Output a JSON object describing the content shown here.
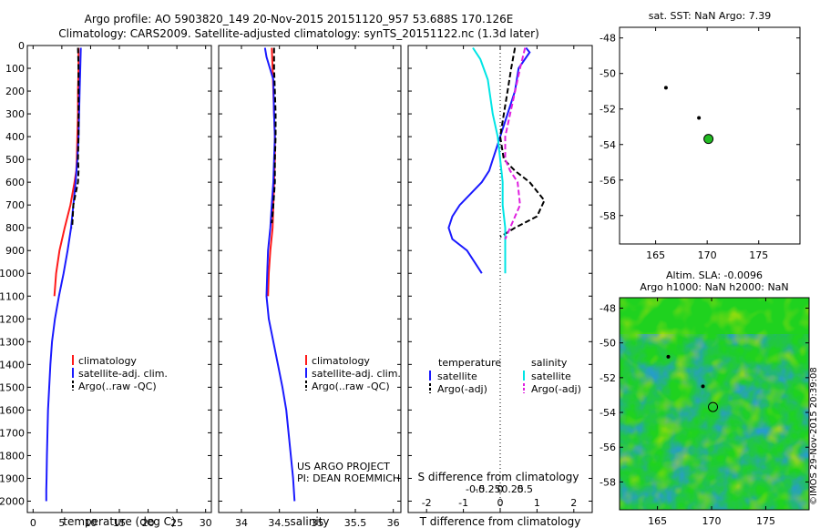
{
  "header": {
    "line1": "Argo profile: AO 5903820_149 20-Nov-2015 20151120_957 53.688S 170.126E",
    "line2": "Climatology: CARS2009. Satellite-adjusted climatology: synTS_20151122.nc (1.3d later)"
  },
  "colors": {
    "climatology": "#ff1a1a",
    "satellite": "#1a1aff",
    "argo": "#000000",
    "satellite_salinity": "#00e5e5",
    "argo_salinity_adj": "#e020e0",
    "argo_marker": "#22bb22"
  },
  "chart_data": [
    {
      "id": "temperature",
      "type": "line",
      "xlabel": "temperature (deg C)",
      "ylabel": "",
      "xlim": [
        -1,
        31
      ],
      "ylim": [
        2050,
        0
      ],
      "xticks": [
        0,
        5,
        10,
        15,
        20,
        25,
        30
      ],
      "yticks": [
        0,
        100,
        200,
        300,
        400,
        500,
        600,
        700,
        800,
        900,
        1000,
        1100,
        1200,
        1300,
        1400,
        1500,
        1600,
        1700,
        1800,
        1900,
        2000
      ],
      "legend": {
        "placement": "lower-center",
        "entries": [
          "climatology",
          "satellite-adj. clim.",
          "Argo(..raw -QC)"
        ]
      },
      "series": [
        {
          "name": "climatology",
          "color": "#ff1a1a",
          "style": "solid",
          "x": [
            7.9,
            7.9,
            7.8,
            7.8,
            7.7,
            7.6,
            7.5,
            7.2,
            6.5,
            5.5,
            4.6,
            4.0,
            3.7
          ],
          "y": [
            10,
            100,
            200,
            300,
            400,
            500,
            550,
            600,
            700,
            800,
            900,
            1000,
            1100
          ]
        },
        {
          "name": "satellite-adj. clim.",
          "color": "#1a1aff",
          "style": "solid",
          "x": [
            8.3,
            8.2,
            8.1,
            8.0,
            7.9,
            7.7,
            7.4,
            7.0,
            6.6,
            6.0,
            5.3,
            4.5,
            3.8,
            3.3,
            3.0,
            2.8,
            2.6,
            2.5,
            2.4,
            2.35,
            2.3,
            2.3
          ],
          "y": [
            10,
            100,
            200,
            300,
            400,
            500,
            600,
            700,
            800,
            900,
            1000,
            1100,
            1200,
            1300,
            1400,
            1500,
            1600,
            1700,
            1800,
            1900,
            1950,
            2000
          ]
        },
        {
          "name": "Argo(..raw -QC)",
          "color": "#000000",
          "style": "dashed",
          "x": [
            7.8,
            7.9,
            7.9,
            7.9,
            7.9,
            7.8,
            7.9,
            7.8,
            7.4,
            7.0,
            6.8
          ],
          "y": [
            10,
            100,
            200,
            300,
            400,
            500,
            550,
            600,
            650,
            700,
            800
          ]
        }
      ]
    },
    {
      "id": "salinity",
      "type": "line",
      "xlabel": "salinity",
      "ylabel": "",
      "xlim": [
        33.7,
        36.1
      ],
      "ylim": [
        2050,
        0
      ],
      "xticks": [
        34,
        34.5,
        35,
        35.5,
        36
      ],
      "legend": {
        "placement": "lower-center",
        "entries": [
          "climatology",
          "satellite-adj. clim.",
          "Argo(..raw -QC)"
        ]
      },
      "annotations": [
        "US ARGO PROJECT",
        "PI: DEAN ROEMMICH"
      ],
      "series": [
        {
          "name": "climatology",
          "color": "#ff1a1a",
          "style": "solid",
          "x": [
            34.4,
            34.41,
            34.42,
            34.43,
            34.44,
            34.44,
            34.43,
            34.42,
            34.41,
            34.38,
            34.36,
            34.35
          ],
          "y": [
            10,
            100,
            200,
            300,
            400,
            500,
            600,
            700,
            800,
            900,
            1000,
            1100
          ]
        },
        {
          "name": "satellite-adj. clim.",
          "color": "#1a1aff",
          "style": "solid",
          "x": [
            34.31,
            34.33,
            34.42,
            34.43,
            34.44,
            34.43,
            34.42,
            34.4,
            34.38,
            34.35,
            34.34,
            34.33,
            34.36,
            34.42,
            34.48,
            34.54,
            34.59,
            34.62,
            34.65,
            34.68,
            34.7
          ],
          "y": [
            10,
            50,
            150,
            300,
            400,
            500,
            600,
            700,
            800,
            900,
            1000,
            1100,
            1200,
            1300,
            1400,
            1500,
            1600,
            1700,
            1800,
            1900,
            2000
          ]
        },
        {
          "name": "Argo(..raw -QC)",
          "color": "#000000",
          "style": "dashed",
          "x": [
            34.43,
            34.43,
            34.44,
            34.45,
            34.45,
            34.44,
            34.44,
            34.42,
            34.4
          ],
          "y": [
            10,
            100,
            200,
            300,
            400,
            500,
            600,
            700,
            780
          ]
        }
      ]
    },
    {
      "id": "difference",
      "type": "line",
      "xlabel": "T difference from climatology",
      "xlabel_top": "S difference from climatology",
      "xlim": [
        -2.5,
        2.5
      ],
      "ylim": [
        2050,
        0
      ],
      "xticks_bottom": [
        -2,
        -1,
        0,
        1,
        2
      ],
      "xticks_top": [
        "-0.5",
        "-0.25",
        "0",
        "0.25",
        "0.5"
      ],
      "legend": {
        "placement": "lower-center",
        "temperature_header": "temperature",
        "salinity_header": "salinity",
        "entries": [
          "satellite",
          "Argo(-adj)",
          "satellite",
          "Argo(-adj)"
        ]
      },
      "series": [
        {
          "name": "temperature satellite",
          "color": "#1a1aff",
          "style": "solid",
          "x": [
            0.7,
            0.8,
            0.5,
            0.4,
            0.2,
            0.0,
            -0.1,
            -0.2,
            -0.3,
            -0.5,
            -0.8,
            -1.1,
            -1.3,
            -1.4,
            -1.3,
            -0.9,
            -0.7,
            -0.5
          ],
          "y": [
            10,
            30,
            100,
            200,
            300,
            400,
            450,
            500,
            550,
            600,
            650,
            700,
            750,
            800,
            850,
            900,
            950,
            1000
          ]
        },
        {
          "name": "temperature Argo(-adj)",
          "color": "#000000",
          "style": "dashed",
          "x": [
            0.4,
            0.3,
            0.2,
            0.1,
            0.0,
            0.1,
            0.4,
            0.8,
            1.2,
            1.0,
            0.4,
            0.0
          ],
          "y": [
            10,
            100,
            200,
            300,
            400,
            500,
            550,
            600,
            680,
            750,
            800,
            840
          ]
        },
        {
          "name": "salinity satellite",
          "color": "#00e5e5",
          "style": "solid",
          "x": [
            -0.55,
            -0.4,
            -0.25,
            -0.15,
            -0.05,
            0.0,
            0.05,
            0.05,
            0.1,
            0.1,
            0.1,
            0.1
          ],
          "y": [
            10,
            60,
            150,
            300,
            400,
            500,
            600,
            700,
            800,
            900,
            950,
            1000
          ]
        },
        {
          "name": "salinity Argo(-adj)",
          "color": "#e020e0",
          "style": "dashed",
          "x": [
            0.5,
            0.4,
            0.3,
            0.2,
            0.1,
            0.1,
            0.2,
            0.35,
            0.4,
            0.2,
            0.1
          ],
          "y": [
            10,
            100,
            200,
            300,
            400,
            500,
            550,
            600,
            700,
            800,
            850
          ]
        }
      ]
    },
    {
      "id": "map-sst",
      "type": "scatter",
      "title": "sat. SST: NaN Argo: 7.39",
      "xlim": [
        161.5,
        179
      ],
      "ylim": [
        -59.6,
        -47.4
      ],
      "xticks": [
        165,
        170,
        175
      ],
      "yticks": [
        -48,
        -50,
        -52,
        -54,
        -56,
        -58
      ],
      "points": [
        {
          "x": 166.0,
          "y": -50.8,
          "role": "track"
        },
        {
          "x": 169.2,
          "y": -52.5,
          "role": "track"
        },
        {
          "x": 170.126,
          "y": -53.688,
          "role": "argo"
        }
      ]
    },
    {
      "id": "map-sla",
      "type": "heatmap",
      "title_line1": "Altim. SLA: -0.0096",
      "title_line2": "Argo h1000: NaN h2000: NaN",
      "xlim": [
        161.5,
        179
      ],
      "ylim": [
        -59.6,
        -47.4
      ],
      "xticks": [
        165,
        170,
        175
      ],
      "yticks": [
        -48,
        -50,
        -52,
        -54,
        -56,
        -58
      ],
      "points": [
        {
          "x": 166.0,
          "y": -50.8,
          "role": "track"
        },
        {
          "x": 169.2,
          "y": -52.5,
          "role": "track"
        },
        {
          "x": 170.126,
          "y": -53.688,
          "role": "argo"
        }
      ]
    }
  ],
  "credit": "©IMOS 29-Nov-2015 20:39:08"
}
